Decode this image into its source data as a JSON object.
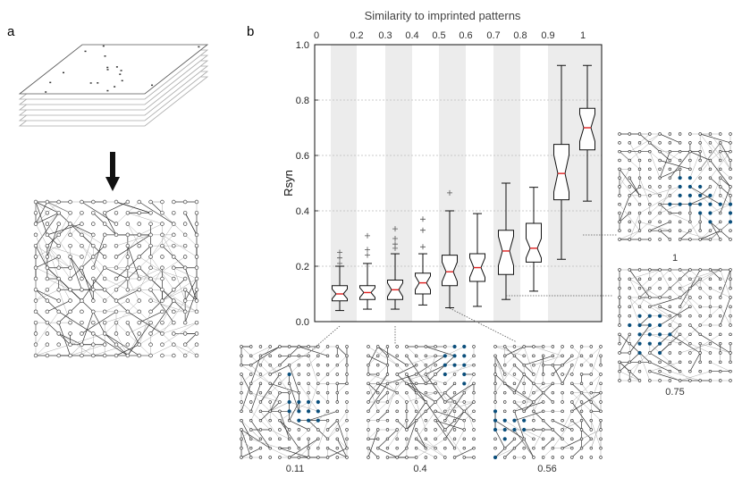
{
  "panels": {
    "a": {
      "label": "a"
    },
    "b": {
      "label": "b"
    }
  },
  "chart_data": {
    "type": "box",
    "title": "Similarity to imprinted patterns",
    "ylabel": "Rsyn",
    "ylim": [
      0,
      1.0
    ],
    "yticks": [
      "0.0",
      "0.2",
      "0.4",
      "0.6",
      "0.8",
      "1.0"
    ],
    "xticks": [
      "0",
      "0.2",
      "0.3",
      "0.4",
      "0.5",
      "0.6",
      "0.7",
      "0.8",
      "0.9",
      "1"
    ],
    "grid": true,
    "colors": {
      "median": "#e02020",
      "box": "#111111",
      "shade": "#ececec"
    },
    "boxes": [
      {
        "q1": 0.075,
        "median": 0.1,
        "q3": 0.13,
        "whisker_low": 0.04,
        "whisker_high": 0.2,
        "outliers": [
          0.21,
          0.23,
          0.25
        ]
      },
      {
        "q1": 0.08,
        "median": 0.105,
        "q3": 0.13,
        "whisker_low": 0.045,
        "whisker_high": 0.21,
        "outliers": [
          0.24,
          0.26,
          0.31
        ]
      },
      {
        "q1": 0.08,
        "median": 0.115,
        "q3": 0.15,
        "whisker_low": 0.045,
        "whisker_high": 0.245,
        "outliers": [
          0.265,
          0.28,
          0.3,
          0.335
        ]
      },
      {
        "q1": 0.1,
        "median": 0.14,
        "q3": 0.175,
        "whisker_low": 0.06,
        "whisker_high": 0.245,
        "outliers": [
          0.27,
          0.33,
          0.37
        ]
      },
      {
        "q1": 0.13,
        "median": 0.18,
        "q3": 0.24,
        "whisker_low": 0.05,
        "whisker_high": 0.4,
        "outliers": [
          0.465
        ]
      },
      {
        "q1": 0.145,
        "median": 0.195,
        "q3": 0.245,
        "whisker_low": 0.055,
        "whisker_high": 0.39,
        "outliers": []
      },
      {
        "q1": 0.17,
        "median": 0.255,
        "q3": 0.33,
        "whisker_low": 0.08,
        "whisker_high": 0.5,
        "outliers": []
      },
      {
        "q1": 0.215,
        "median": 0.265,
        "q3": 0.355,
        "whisker_low": 0.11,
        "whisker_high": 0.485,
        "outliers": []
      },
      {
        "q1": 0.44,
        "median": 0.535,
        "q3": 0.64,
        "whisker_low": 0.225,
        "whisker_high": 0.925,
        "outliers": []
      },
      {
        "q1": 0.62,
        "median": 0.7,
        "q3": 0.77,
        "whisker_low": 0.435,
        "whisker_high": 0.925,
        "outliers": []
      }
    ]
  },
  "insets": [
    {
      "label": "0.11"
    },
    {
      "label": "0.4"
    },
    {
      "label": "0.56"
    },
    {
      "label": "0.75"
    },
    {
      "label": "1"
    }
  ]
}
